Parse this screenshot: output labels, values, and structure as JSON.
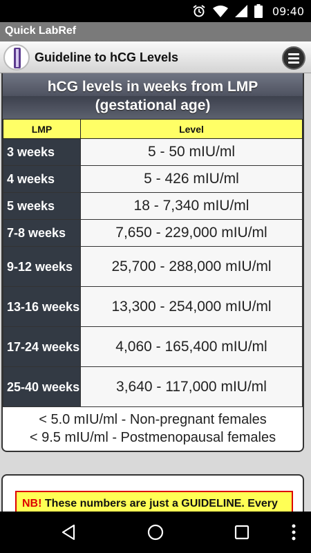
{
  "status_bar": {
    "time": "09:40",
    "icons": [
      "alarm-icon",
      "wifi-icon",
      "signal-icon",
      "battery-icon"
    ]
  },
  "app": {
    "title": "Quick LabRef"
  },
  "header": {
    "title": "Guideline to hCG Levels",
    "logo_icon": "test-tube-icon",
    "menu_icon": "menu-icon"
  },
  "card": {
    "title_line1": "hCG levels in weeks from LMP",
    "title_line2": "(gestational age)",
    "columns": [
      "LMP",
      "Level"
    ],
    "rows": [
      {
        "lmp": "3 weeks",
        "level": "5 - 50 mIU/ml"
      },
      {
        "lmp": "4 weeks",
        "level": "5 - 426 mIU/ml"
      },
      {
        "lmp": "5 weeks",
        "level": "18 - 7,340 mIU/ml"
      },
      {
        "lmp": "7-8 weeks",
        "level": "7,650 - 229,000 mIU/ml"
      },
      {
        "lmp": "9-12 weeks",
        "level": "25,700 - 288,000 mIU/ml"
      },
      {
        "lmp": "13-16 weeks",
        "level": "13,300 - 254,000 mIU/ml"
      },
      {
        "lmp": "17-24 weeks",
        "level": "4,060 - 165,400 mIU/ml"
      },
      {
        "lmp": "25-40 weeks",
        "level": "3,640 - 117,000 mIU/ml"
      }
    ],
    "notes": [
      "< 5.0 mIU/ml - Non-pregnant females",
      "< 9.5 mIU/ml - Postmenopausal females"
    ]
  },
  "warning": {
    "nb": "NB!",
    "text": "These numbers are just a GUIDELINE. Every"
  },
  "colors": {
    "header_yellow": "#ffff66",
    "label_dark": "#333a44",
    "warning_red": "#dd0000"
  },
  "nav_bar": {
    "icons": [
      "back-icon",
      "home-icon",
      "recents-icon",
      "more-icon"
    ]
  }
}
